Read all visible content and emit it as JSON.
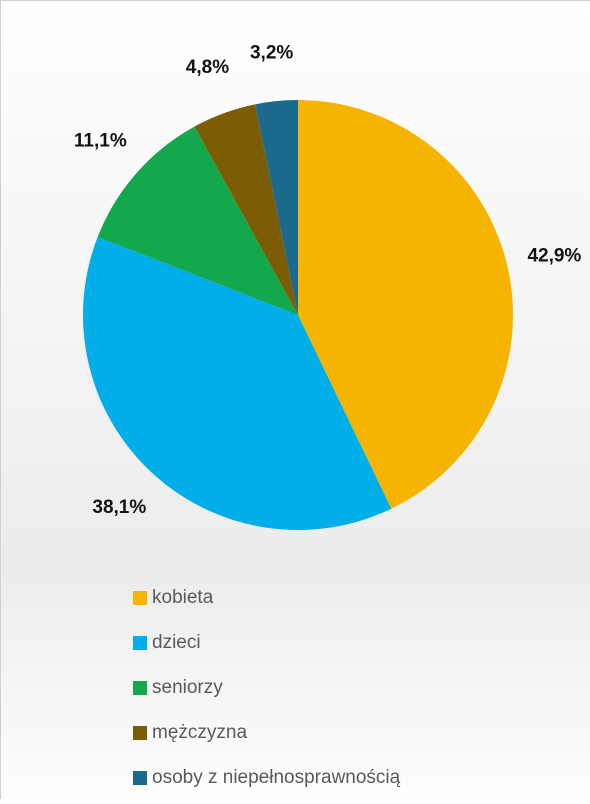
{
  "chart_data": {
    "type": "pie",
    "categories": [
      "kobieta",
      "dzieci",
      "seniorzy",
      "mężczyzna",
      "osoby z niepełnosprawnością"
    ],
    "values": [
      42.9,
      38.1,
      11.1,
      4.8,
      3.2
    ],
    "value_labels": [
      "42,9%",
      "38,1%",
      "11,1%",
      "4,8%",
      "3,2%"
    ],
    "colors": [
      "#f5b400",
      "#00aeea",
      "#13a84b",
      "#7d5c06",
      "#1a6a8e"
    ]
  }
}
